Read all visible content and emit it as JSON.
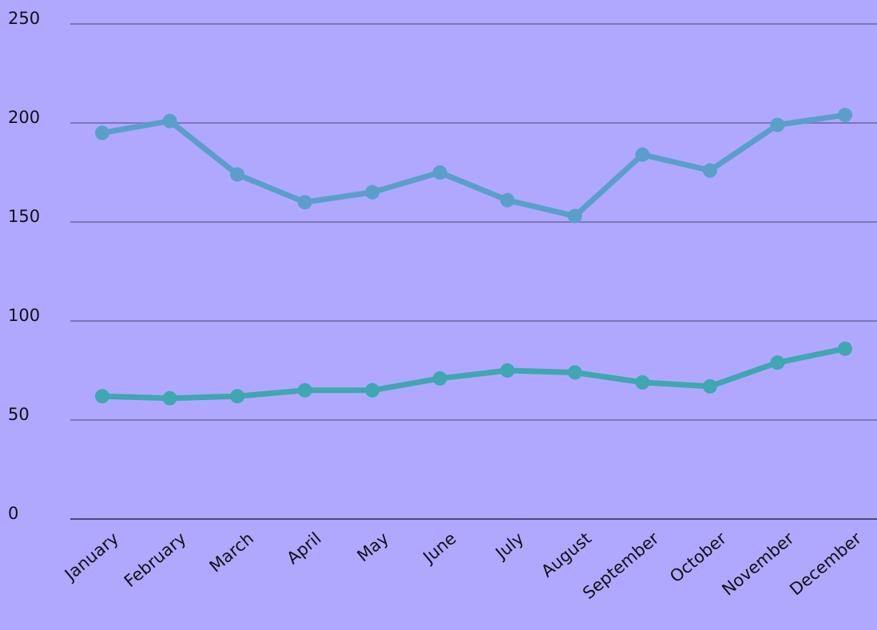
{
  "chart_data": {
    "type": "line",
    "categories": [
      "January",
      "February",
      "March",
      "April",
      "May",
      "June",
      "July",
      "August",
      "September",
      "October",
      "November",
      "December"
    ],
    "series": [
      {
        "color": "#5a9fc9",
        "values": [
          195,
          201,
          174,
          160,
          165,
          175,
          161,
          153,
          184,
          176,
          199,
          204
        ]
      },
      {
        "color": "#3fa7b0",
        "values": [
          62,
          61,
          62,
          65,
          65,
          71,
          75,
          74,
          69,
          67,
          79,
          86
        ]
      }
    ],
    "ylim": [
      0,
      250
    ],
    "yticks": [
      0,
      50,
      100,
      150,
      200,
      250
    ],
    "grid": true
  }
}
